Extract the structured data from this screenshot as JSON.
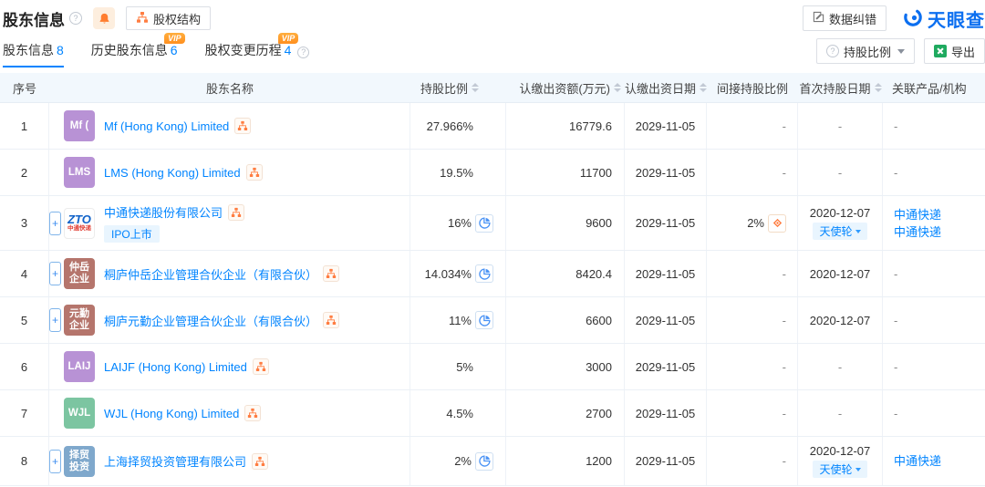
{
  "header": {
    "title": "股东信息",
    "equity_structure_button": "股权结构",
    "data_correction_button": "数据纠错",
    "logo_text": "天眼查"
  },
  "icons": {
    "help_glyph": "?",
    "expand_glyph": "+",
    "vip_label": "VIP"
  },
  "tabs": [
    {
      "label": "股东信息",
      "count": "8",
      "active": true,
      "vip": false,
      "help": false
    },
    {
      "label": "历史股东信息",
      "count": "6",
      "active": false,
      "vip": true,
      "help": false
    },
    {
      "label": "股权变更历程",
      "count": "4",
      "active": false,
      "vip": true,
      "help": true
    }
  ],
  "toolbar": {
    "ratio_filter_label": "持股比例",
    "export_label": "导出"
  },
  "table": {
    "columns": [
      {
        "label": "序号",
        "sortable": false
      },
      {
        "label": "股东名称",
        "sortable": false
      },
      {
        "label": "持股比例",
        "sortable": true
      },
      {
        "label": "认缴出资额(万元)",
        "sortable": true
      },
      {
        "label": "认缴出资日期",
        "sortable": true
      },
      {
        "label": "间接持股比例",
        "sortable": false
      },
      {
        "label": "首次持股日期",
        "sortable": true
      },
      {
        "label": "关联产品/机构",
        "sortable": false
      }
    ],
    "rows": [
      {
        "no": "1",
        "expand": false,
        "avatar": {
          "bg": "#b892d5",
          "lines": [
            "Mf ("
          ]
        },
        "name": "Mf (Hong Kong) Limited",
        "tag": "",
        "ratio": "27.966%",
        "ratio_pie": false,
        "capital": "16779.6",
        "capital_date": "2029-11-05",
        "indirect": "-",
        "indirect_icon": false,
        "first_date": "-",
        "first_round": "",
        "products": [
          "-"
        ]
      },
      {
        "no": "2",
        "expand": false,
        "avatar": {
          "bg": "#b892d5",
          "lines": [
            "LMS"
          ]
        },
        "name": "LMS (Hong Kong) Limited",
        "tag": "",
        "ratio": "19.5%",
        "ratio_pie": false,
        "capital": "11700",
        "capital_date": "2029-11-05",
        "indirect": "-",
        "indirect_icon": false,
        "first_date": "-",
        "first_round": "",
        "products": [
          "-"
        ]
      },
      {
        "no": "3",
        "expand": true,
        "avatar": {
          "type": "zto",
          "top": "ZTO",
          "bottom": "中通快递"
        },
        "name": "中通快递股份有限公司",
        "tag": "IPO上市",
        "ratio": "16%",
        "ratio_pie": true,
        "capital": "9600",
        "capital_date": "2029-11-05",
        "indirect": "2%",
        "indirect_icon": true,
        "first_date": "2020-12-07",
        "first_round": "天使轮",
        "products": [
          "中通快递",
          "中通快递"
        ]
      },
      {
        "no": "4",
        "expand": true,
        "avatar": {
          "bg": "#b5756c",
          "lines": [
            "仲岳",
            "企业"
          ]
        },
        "name": "桐庐仲岳企业管理合伙企业（有限合伙）",
        "tag": "",
        "ratio": "14.034%",
        "ratio_pie": true,
        "capital": "8420.4",
        "capital_date": "2029-11-05",
        "indirect": "-",
        "indirect_icon": false,
        "first_date": "2020-12-07",
        "first_round": "",
        "products": [
          "-"
        ]
      },
      {
        "no": "5",
        "expand": true,
        "avatar": {
          "bg": "#b5756c",
          "lines": [
            "元勤",
            "企业"
          ]
        },
        "name": "桐庐元勤企业管理合伙企业（有限合伙）",
        "tag": "",
        "ratio": "11%",
        "ratio_pie": true,
        "capital": "6600",
        "capital_date": "2029-11-05",
        "indirect": "-",
        "indirect_icon": false,
        "first_date": "2020-12-07",
        "first_round": "",
        "products": [
          "-"
        ]
      },
      {
        "no": "6",
        "expand": false,
        "avatar": {
          "bg": "#b892d5",
          "lines": [
            "LAIJ"
          ]
        },
        "name": "LAIJF (Hong Kong) Limited",
        "tag": "",
        "ratio": "5%",
        "ratio_pie": false,
        "capital": "3000",
        "capital_date": "2029-11-05",
        "indirect": "-",
        "indirect_icon": false,
        "first_date": "-",
        "first_round": "",
        "products": [
          "-"
        ]
      },
      {
        "no": "7",
        "expand": false,
        "avatar": {
          "bg": "#7cc5a1",
          "lines": [
            "WJL"
          ]
        },
        "name": "WJL (Hong Kong) Limited",
        "tag": "",
        "ratio": "4.5%",
        "ratio_pie": false,
        "capital": "2700",
        "capital_date": "2029-11-05",
        "indirect": "-",
        "indirect_icon": false,
        "first_date": "-",
        "first_round": "",
        "products": [
          "-"
        ]
      },
      {
        "no": "8",
        "expand": true,
        "avatar": {
          "bg": "#7fa8cc",
          "lines": [
            "择贸",
            "投资"
          ]
        },
        "name": "上海择贸投资管理有限公司",
        "tag": "",
        "ratio": "2%",
        "ratio_pie": true,
        "capital": "1200",
        "capital_date": "2029-11-05",
        "indirect": "-",
        "indirect_icon": false,
        "first_date": "2020-12-07",
        "first_round": "天使轮",
        "products": [
          "中通快递"
        ]
      }
    ]
  },
  "colors": {
    "accent": "#0084ff",
    "icon_orange": "#ff7d41",
    "vip_badge": "#ff8f1f",
    "header_bg": "#f2f8fd",
    "tag_bg": "#e9f5fe",
    "excel_green": "#1faa5f",
    "logo_blue": "#0c6ff0"
  }
}
